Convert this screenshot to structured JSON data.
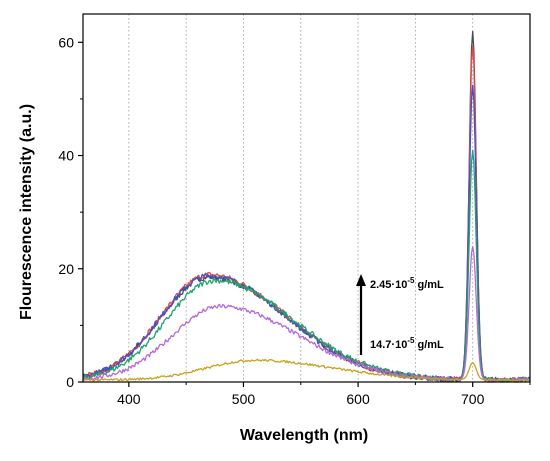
{
  "chart_data": {
    "type": "line",
    "xlabel": "Wavelength (nm)",
    "ylabel": "Flourescence intensity (a.u.)",
    "xlim": [
      360,
      750
    ],
    "ylim": [
      0,
      65
    ],
    "x_ticks": [
      400,
      500,
      600,
      700
    ],
    "y_ticks": [
      0,
      20,
      40,
      60
    ],
    "vertical_dotted_grid": [
      400,
      450,
      500,
      550,
      600,
      650,
      700
    ],
    "grid": "vertical dotted",
    "legend": "none",
    "annotations": {
      "top_label": {
        "base": "2.45·10",
        "exp": "-5",
        "unit": " g/mL"
      },
      "bottom_label": {
        "base": "14.7·10",
        "exp": "-5",
        "unit": " g/mL"
      },
      "arrow": "upward, from 14.7·10-5 g/mL to 2.45·10-5 g/mL"
    },
    "series": [
      {
        "color": "#4a4a4a",
        "broad_peak_x": 470,
        "broad_peak_y": 18.2,
        "sharp_peak_x": 700,
        "sharp_peak_y": 61.5
      },
      {
        "color": "#e8474b",
        "broad_peak_x": 470,
        "broad_peak_y": 18.6,
        "sharp_peak_x": 700,
        "sharp_peak_y": 59.0
      },
      {
        "color": "#3a55c9",
        "broad_peak_x": 470,
        "broad_peak_y": 18.4,
        "sharp_peak_x": 700,
        "sharp_peak_y": 52.0
      },
      {
        "color": "#1fa36a",
        "broad_peak_x": 475,
        "broad_peak_y": 17.6,
        "sharp_peak_x": 700,
        "sharp_peak_y": 40.5
      },
      {
        "color": "#b36ad8",
        "broad_peak_x": 480,
        "broad_peak_y": 13.0,
        "sharp_peak_x": 700,
        "sharp_peak_y": 23.5
      },
      {
        "color": "#c9a21c",
        "broad_peak_x": 510,
        "broad_peak_y": 3.5,
        "sharp_peak_x": 700,
        "sharp_peak_y": 3.0
      }
    ]
  }
}
